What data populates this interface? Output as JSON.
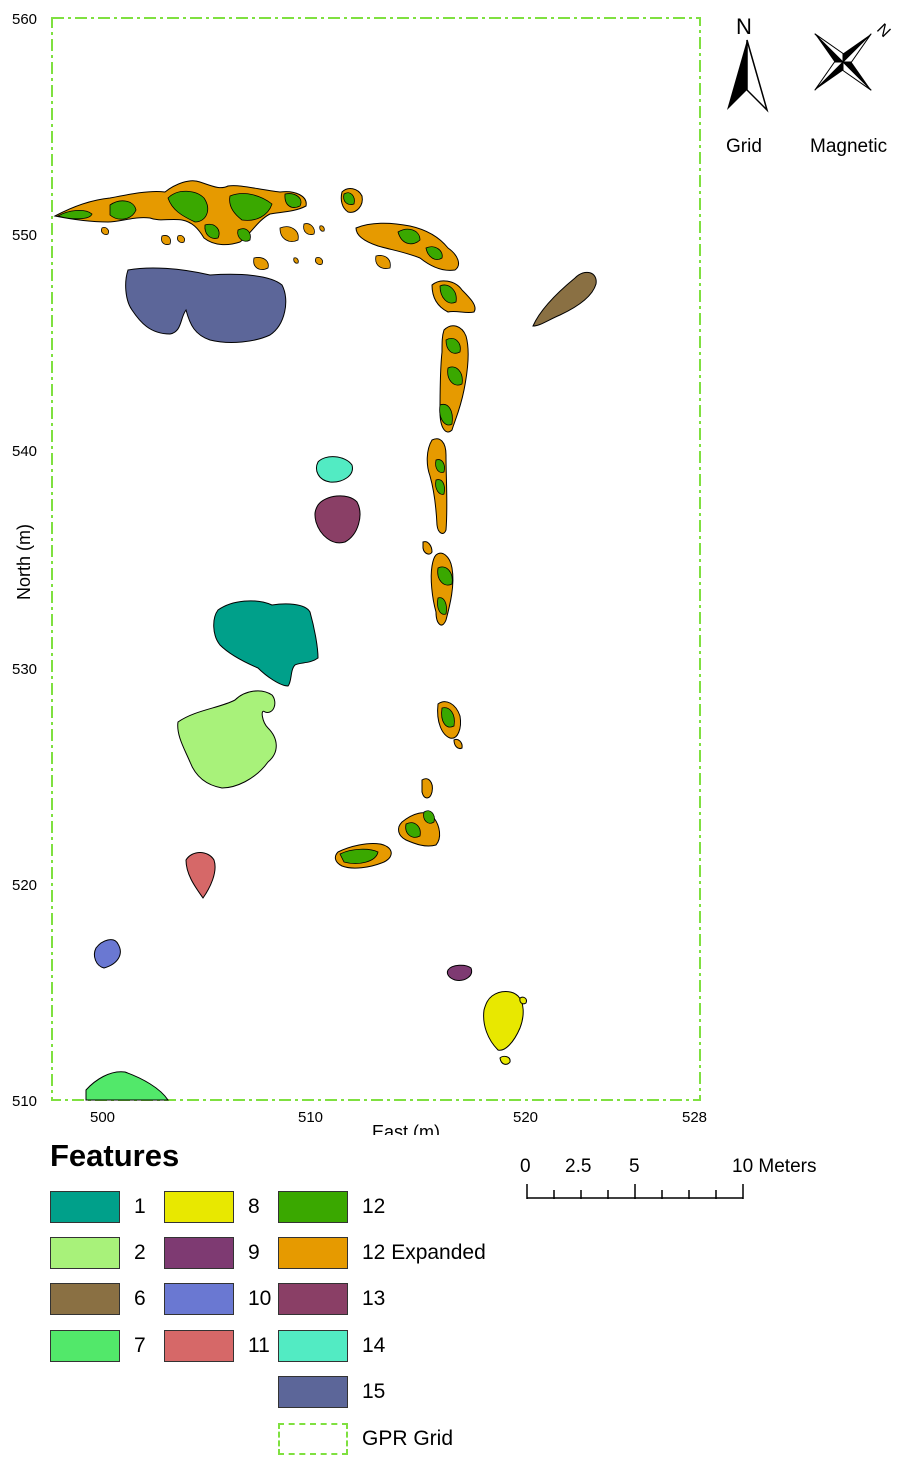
{
  "map": {
    "x_axis_label": "East (m)",
    "y_axis_label": "North (m)",
    "x_ticks": [
      "500",
      "510",
      "520",
      "528"
    ],
    "y_ticks": [
      "560",
      "550",
      "540",
      "530",
      "520",
      "510"
    ],
    "x_range": [
      498,
      528
    ],
    "y_range": [
      510,
      560
    ],
    "grid_color": "#7fe040"
  },
  "north_arrows": {
    "grid_letter": "N",
    "grid_label": "Grid",
    "magnetic_letter": "N",
    "magnetic_label": "Magnetic"
  },
  "scale_bar": {
    "labels": [
      "0",
      "2.5",
      "5",
      "10 Meters"
    ]
  },
  "legend": {
    "title": "Features",
    "items": [
      {
        "label": "1",
        "color": "#00a08a"
      },
      {
        "label": "2",
        "color": "#a8f27a"
      },
      {
        "label": "6",
        "color": "#8a7043"
      },
      {
        "label": "7",
        "color": "#52e86a"
      },
      {
        "label": "8",
        "color": "#e8e800"
      },
      {
        "label": "9",
        "color": "#7e3a72"
      },
      {
        "label": "10",
        "color": "#6a78d2"
      },
      {
        "label": "11",
        "color": "#d66868"
      },
      {
        "label": "12",
        "color": "#3aa800"
      },
      {
        "label": "12 Expanded",
        "color": "#e69a00"
      },
      {
        "label": "13",
        "color": "#8a3f66"
      },
      {
        "label": "14",
        "color": "#52ebc3"
      },
      {
        "label": "15",
        "color": "#5c6699"
      },
      {
        "label": "GPR Grid",
        "color": "#7fe040"
      }
    ]
  }
}
